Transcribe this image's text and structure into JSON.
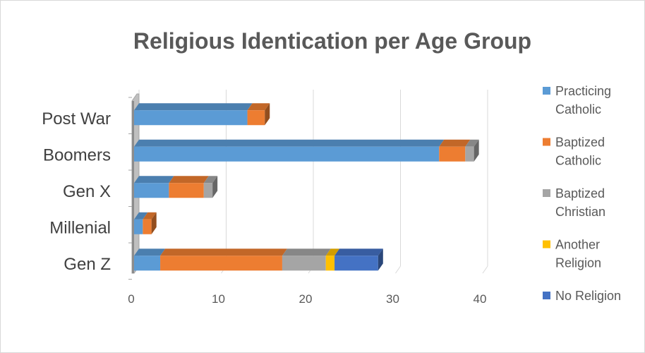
{
  "chart_data": {
    "type": "bar",
    "orientation": "horizontal",
    "stacked": true,
    "style": "3d",
    "title": "Religious Identication per Age Group",
    "xlabel": "",
    "ylabel": "",
    "categories": [
      "Post War",
      "Boomers",
      "Gen X",
      "Millenial",
      "Gen Z"
    ],
    "series": [
      {
        "name": "Practicing Catholic",
        "color": "#5b9bd5",
        "values": [
          13,
          35,
          4,
          1,
          3
        ]
      },
      {
        "name": "Baptized Catholic",
        "color": "#ed7d31",
        "values": [
          2,
          3,
          4,
          1,
          14
        ]
      },
      {
        "name": "Baptized Christian",
        "color": "#a5a5a5",
        "values": [
          0,
          1,
          1,
          0,
          5
        ]
      },
      {
        "name": "Another Religion",
        "color": "#ffc000",
        "values": [
          0,
          0,
          0,
          0,
          1
        ]
      },
      {
        "name": "No Religion",
        "color": "#4472c4",
        "values": [
          0,
          0,
          0,
          0,
          5
        ]
      }
    ],
    "xlim": [
      0,
      40
    ],
    "xticks": [
      0,
      10,
      20,
      30,
      40
    ],
    "grid": true,
    "legend_position": "right",
    "legend_labels": [
      [
        "Practicing",
        "Catholic"
      ],
      [
        "Baptized",
        "Catholic"
      ],
      [
        "Baptized",
        "Christian"
      ],
      [
        "Another",
        "Religion"
      ],
      [
        "No Religion"
      ]
    ]
  }
}
